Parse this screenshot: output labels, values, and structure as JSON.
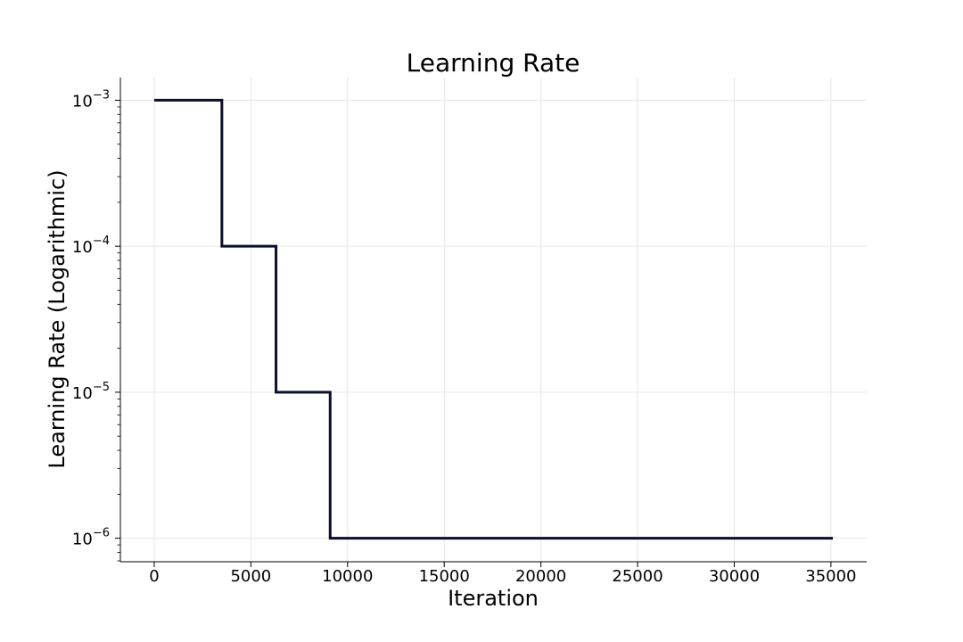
{
  "chart_data": {
    "type": "line",
    "title": "Learning Rate",
    "xlabel": "Iteration",
    "ylabel": "Learning Rate (Logarithmic)",
    "xlim": [
      -1750,
      36850
    ],
    "xticks": [
      0,
      5000,
      10000,
      15000,
      20000,
      25000,
      30000,
      35000
    ],
    "xtick_labels": [
      "0",
      "5000",
      "10000",
      "15000",
      "20000",
      "25000",
      "30000",
      "35000"
    ],
    "y_scale": "log",
    "ylim": [
      6.9e-07,
      0.00143
    ],
    "yticks": [
      0.001,
      0.0001,
      1e-05,
      1e-06
    ],
    "ytick_labels": [
      {
        "base": "10",
        "exp": "−3"
      },
      {
        "base": "10",
        "exp": "−4"
      },
      {
        "base": "10",
        "exp": "−5"
      },
      {
        "base": "10",
        "exp": "−6"
      }
    ],
    "grid": true,
    "series": [
      {
        "color": "#0a0f2c",
        "step": "post",
        "x": [
          0,
          3500,
          6300,
          9100,
          35100
        ],
        "y": [
          0.001,
          0.0001,
          1e-05,
          1e-06,
          1e-06
        ]
      }
    ]
  }
}
